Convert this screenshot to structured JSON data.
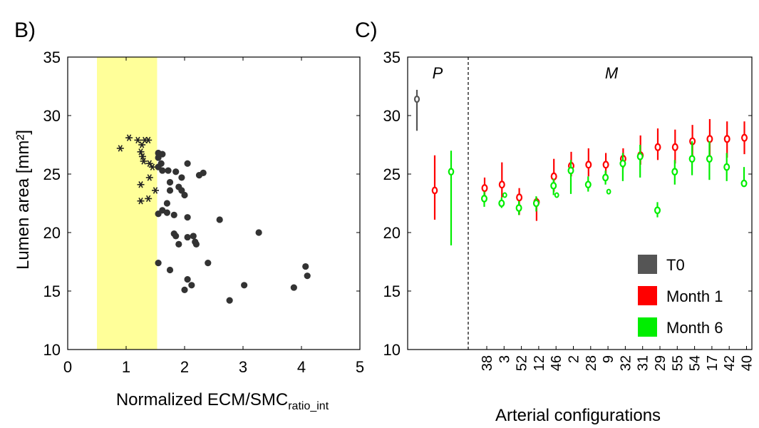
{
  "chart_data": [
    {
      "panel_label": "B)",
      "type": "scatter",
      "xlabel_main": "Normalized ECM/SMC",
      "xlabel_sub": "ratio_int",
      "ylabel": "Lumen area [mm²]",
      "xlim": [
        0,
        5
      ],
      "ylim": [
        10,
        35
      ],
      "xticks": [
        "0",
        "1",
        "2",
        "3",
        "4",
        "5"
      ],
      "yticks": [
        "10",
        "15",
        "20",
        "25",
        "30",
        "35"
      ],
      "highlight_band": {
        "x_from": 0.5,
        "x_to": 1.53,
        "color": "#ffff99"
      },
      "series": [
        {
          "marker": "asterisk",
          "color": "#222222",
          "points": [
            [
              0.9,
              27.2
            ],
            [
              1.05,
              28.1
            ],
            [
              1.2,
              27.9
            ],
            [
              1.27,
              27.5
            ],
            [
              1.32,
              27.9
            ],
            [
              1.38,
              27.9
            ],
            [
              1.25,
              26.9
            ],
            [
              1.28,
              26.5
            ],
            [
              1.3,
              26.1
            ],
            [
              1.4,
              25.9
            ],
            [
              1.45,
              25.6
            ],
            [
              1.4,
              24.7
            ],
            [
              1.25,
              24.1
            ],
            [
              1.5,
              23.6
            ],
            [
              1.38,
              22.9
            ],
            [
              1.25,
              22.7
            ]
          ]
        },
        {
          "marker": "circle",
          "color": "#333333",
          "points": [
            [
              1.55,
              26.8
            ],
            [
              1.62,
              26.7
            ],
            [
              1.55,
              26.4
            ],
            [
              1.6,
              25.9
            ],
            [
              1.55,
              25.6
            ],
            [
              1.62,
              25.3
            ],
            [
              1.72,
              25.3
            ],
            [
              1.85,
              25.2
            ],
            [
              2.05,
              25.9
            ],
            [
              1.95,
              24.7
            ],
            [
              2.25,
              24.9
            ],
            [
              2.32,
              25.1
            ],
            [
              1.75,
              24.3
            ],
            [
              1.9,
              23.9
            ],
            [
              1.95,
              23.6
            ],
            [
              1.75,
              23.6
            ],
            [
              2.0,
              23.2
            ],
            [
              1.7,
              22.5
            ],
            [
              1.55,
              21.6
            ],
            [
              1.62,
              21.9
            ],
            [
              1.7,
              21.7
            ],
            [
              1.82,
              21.5
            ],
            [
              2.05,
              21.3
            ],
            [
              2.6,
              21.1
            ],
            [
              1.82,
              19.9
            ],
            [
              1.85,
              19.7
            ],
            [
              2.05,
              19.6
            ],
            [
              2.15,
              19.7
            ],
            [
              2.18,
              19.2
            ],
            [
              1.9,
              19.0
            ],
            [
              2.2,
              19.0
            ],
            [
              3.27,
              20.0
            ],
            [
              1.55,
              17.4
            ],
            [
              2.4,
              17.4
            ],
            [
              1.75,
              16.8
            ],
            [
              2.05,
              16.0
            ],
            [
              2.12,
              15.5
            ],
            [
              2.0,
              15.1
            ],
            [
              3.02,
              15.5
            ],
            [
              2.77,
              14.2
            ],
            [
              3.87,
              15.3
            ],
            [
              4.07,
              17.1
            ],
            [
              4.1,
              16.3
            ]
          ]
        }
      ]
    },
    {
      "panel_label": "C)",
      "type": "errorbar",
      "xlabel": "Arterial configurations",
      "ylabel": "",
      "ylim": [
        10,
        35
      ],
      "yticks": [
        "10",
        "15",
        "20",
        "25",
        "30",
        "35"
      ],
      "regions": [
        {
          "label": "P"
        },
        {
          "label": "M"
        }
      ],
      "p_group": [
        {
          "series": "T0",
          "mean": 31.4,
          "low": 28.7,
          "high": 32.2
        },
        {
          "series": "Month 1",
          "mean": 23.6,
          "low": 21.1,
          "high": 26.6
        },
        {
          "series": "Month 6",
          "mean": 25.2,
          "low": 18.9,
          "high": 27.0
        }
      ],
      "categories": [
        "38",
        "3",
        "52",
        "12",
        "46",
        "2",
        "28",
        "9",
        "32",
        "31",
        "29",
        "55",
        "54",
        "17",
        "42",
        "40"
      ],
      "series": [
        {
          "name": "T0",
          "color": "#555555",
          "mean": [],
          "low": [],
          "high": []
        },
        {
          "name": "Month 1",
          "color": "#ff0000",
          "mean": [
            23.8,
            24.1,
            23.0,
            22.6,
            24.8,
            25.7,
            25.8,
            25.8,
            26.3,
            26.6,
            27.3,
            27.3,
            27.8,
            28.0,
            28.0,
            28.1
          ],
          "low": [
            23.0,
            23.0,
            21.5,
            21.0,
            23.5,
            24.8,
            24.8,
            24.9,
            25.5,
            25.8,
            26.2,
            25.9,
            26.5,
            26.5,
            26.4,
            26.7
          ],
          "high": [
            24.7,
            26.0,
            23.8,
            23.0,
            26.3,
            26.9,
            27.2,
            26.8,
            27.2,
            28.3,
            28.9,
            28.8,
            29.2,
            29.7,
            29.5,
            29.5
          ]
        },
        {
          "name": "Month 6",
          "color": "#00ee00",
          "mean": [
            22.9,
            22.5,
            22.1,
            22.5,
            24.0,
            25.3,
            24.1,
            24.7,
            25.9,
            26.5,
            21.9,
            25.2,
            26.3,
            26.3,
            25.6,
            24.2
          ],
          "low": [
            22.2,
            22.1,
            21.5,
            21.8,
            23.2,
            23.3,
            23.5,
            24.1,
            24.4,
            24.7,
            21.3,
            24.1,
            24.9,
            24.5,
            24.4,
            23.9
          ],
          "high": [
            23.5,
            23.0,
            22.7,
            23.1,
            24.6,
            26.2,
            24.8,
            25.3,
            26.8,
            27.5,
            22.6,
            26.2,
            27.8,
            27.8,
            26.8,
            25.6
          ]
        }
      ],
      "extra_points_month6": [
        {
          "category": "3",
          "value": 23.2
        },
        {
          "category": "46",
          "value": 23.2
        },
        {
          "category": "9",
          "value": 23.5
        }
      ],
      "legend": {
        "placement": "bottom-right",
        "entries": [
          "T0",
          "Month 1",
          "Month 6"
        ]
      }
    }
  ]
}
